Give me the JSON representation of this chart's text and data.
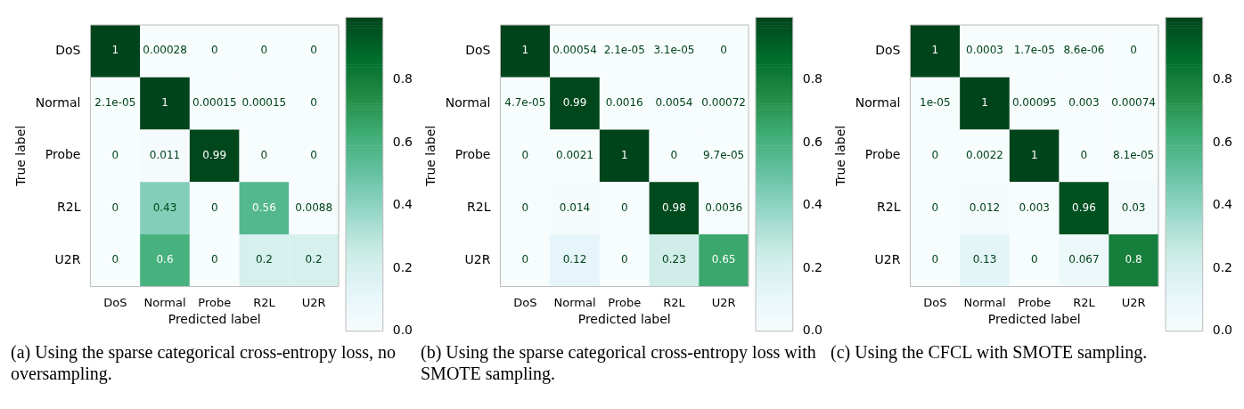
{
  "chart_data": [
    {
      "type": "heatmap",
      "categories": [
        "DoS",
        "Normal",
        "Probe",
        "R2L",
        "U2R"
      ],
      "y_categories": [
        "DoS",
        "Normal",
        "Probe",
        "R2L",
        "U2R"
      ],
      "xlabel": "Predicted label",
      "ylabel": "True label",
      "cells": [
        [
          1,
          0.00028,
          0,
          0,
          0
        ],
        [
          2.1e-05,
          1,
          0.00015,
          0.00015,
          0
        ],
        [
          0,
          0.011,
          0.99,
          0,
          0
        ],
        [
          0,
          0.43,
          0,
          0.56,
          0.0088
        ],
        [
          0,
          0.6,
          0,
          0.2,
          0.2
        ]
      ],
      "cell_labels": [
        [
          "1",
          "0.00028",
          "0",
          "0",
          "0"
        ],
        [
          "2.1e-05",
          "1",
          "0.00015",
          "0.00015",
          "0"
        ],
        [
          "0",
          "0.011",
          "0.99",
          "0",
          "0"
        ],
        [
          "0",
          "0.43",
          "0",
          "0.56",
          "0.0088"
        ],
        [
          "0",
          "0.6",
          "0",
          "0.2",
          "0.2"
        ]
      ],
      "clim": [
        0,
        1
      ],
      "cticks": [
        {
          "value": 0,
          "label": "0.0"
        },
        {
          "value": 0.2,
          "label": "0.2"
        },
        {
          "value": 0.4,
          "label": "0.4"
        },
        {
          "value": 0.6,
          "label": "0.6"
        },
        {
          "value": 0.8,
          "label": "0.8"
        }
      ],
      "annotations": [
        "(a) Using the sparse categorical cross-entropy loss, no oversampling."
      ]
    },
    {
      "type": "heatmap",
      "categories": [
        "DoS",
        "Normal",
        "Probe",
        "R2L",
        "U2R"
      ],
      "y_categories": [
        "DoS",
        "Normal",
        "Probe",
        "R2L",
        "U2R"
      ],
      "xlabel": "Predicted label",
      "ylabel": "True label",
      "cells": [
        [
          1,
          0.00054,
          2.1e-05,
          3.1e-05,
          0
        ],
        [
          4.7e-05,
          0.99,
          0.0016,
          0.0054,
          0.00072
        ],
        [
          0,
          0.0021,
          1,
          0,
          9.7e-05
        ],
        [
          0,
          0.014,
          0,
          0.98,
          0.0036
        ],
        [
          0,
          0.12,
          0,
          0.23,
          0.65
        ]
      ],
      "cell_labels": [
        [
          "1",
          "0.00054",
          "2.1e-05",
          "3.1e-05",
          "0"
        ],
        [
          "4.7e-05",
          "0.99",
          "0.0016",
          "0.0054",
          "0.00072"
        ],
        [
          "0",
          "0.0021",
          "1",
          "0",
          "9.7e-05"
        ],
        [
          "0",
          "0.014",
          "0",
          "0.98",
          "0.0036"
        ],
        [
          "0",
          "0.12",
          "0",
          "0.23",
          "0.65"
        ]
      ],
      "clim": [
        0,
        1
      ],
      "cticks": [
        {
          "value": 0,
          "label": "0.0"
        },
        {
          "value": 0.2,
          "label": "0.2"
        },
        {
          "value": 0.4,
          "label": "0.4"
        },
        {
          "value": 0.6,
          "label": "0.6"
        },
        {
          "value": 0.8,
          "label": "0.8"
        }
      ],
      "annotations": [
        "(b) Using the sparse categorical cross-entropy loss with SMOTE sampling."
      ]
    },
    {
      "type": "heatmap",
      "categories": [
        "DoS",
        "Normal",
        "Probe",
        "R2L",
        "U2R"
      ],
      "y_categories": [
        "DoS",
        "Normal",
        "Probe",
        "R2L",
        "U2R"
      ],
      "xlabel": "Predicted label",
      "ylabel": "True label",
      "cells": [
        [
          1,
          0.0003,
          1.7e-05,
          8.6e-06,
          0
        ],
        [
          1e-05,
          1,
          0.00095,
          0.003,
          0.00074
        ],
        [
          0,
          0.0022,
          1,
          0,
          8.1e-05
        ],
        [
          0,
          0.012,
          0.003,
          0.96,
          0.03
        ],
        [
          0,
          0.13,
          0,
          0.067,
          0.8
        ]
      ],
      "cell_labels": [
        [
          "1",
          "0.0003",
          "1.7e-05",
          "8.6e-06",
          "0"
        ],
        [
          "1e-05",
          "1",
          "0.00095",
          "0.003",
          "0.00074"
        ],
        [
          "0",
          "0.0022",
          "1",
          "0",
          "8.1e-05"
        ],
        [
          "0",
          "0.012",
          "0.003",
          "0.96",
          "0.03"
        ],
        [
          "0",
          "0.13",
          "0",
          "0.067",
          "0.8"
        ]
      ],
      "clim": [
        0,
        1
      ],
      "cticks": [
        {
          "value": 0,
          "label": "0.0"
        },
        {
          "value": 0.2,
          "label": "0.2"
        },
        {
          "value": 0.4,
          "label": "0.4"
        },
        {
          "value": 0.6,
          "label": "0.6"
        },
        {
          "value": 0.8,
          "label": "0.8"
        }
      ],
      "annotations": [
        "(c) Using the CFCL with SMOTE sampling."
      ]
    }
  ]
}
